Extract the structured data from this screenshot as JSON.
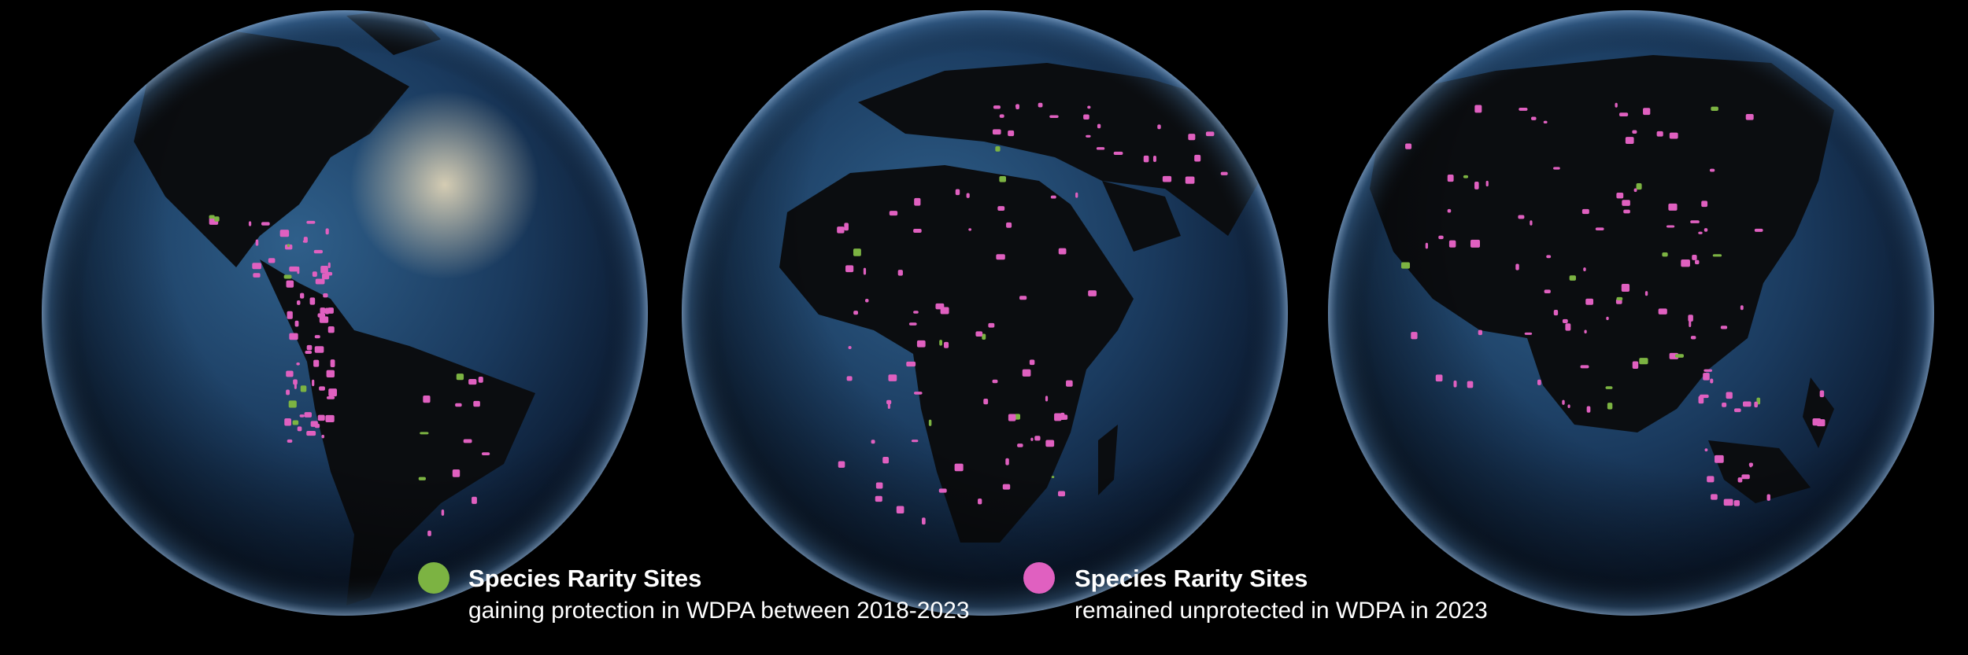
{
  "legend": {
    "items": [
      {
        "title": "Species Rarity Sites",
        "description": "gaining protection in WDPA between 2018-2023",
        "color": "#7cb342"
      },
      {
        "title": "Species Rarity Sites",
        "description": "remained unprotected in WDPA in 2023",
        "color": "#e060c0"
      }
    ]
  }
}
